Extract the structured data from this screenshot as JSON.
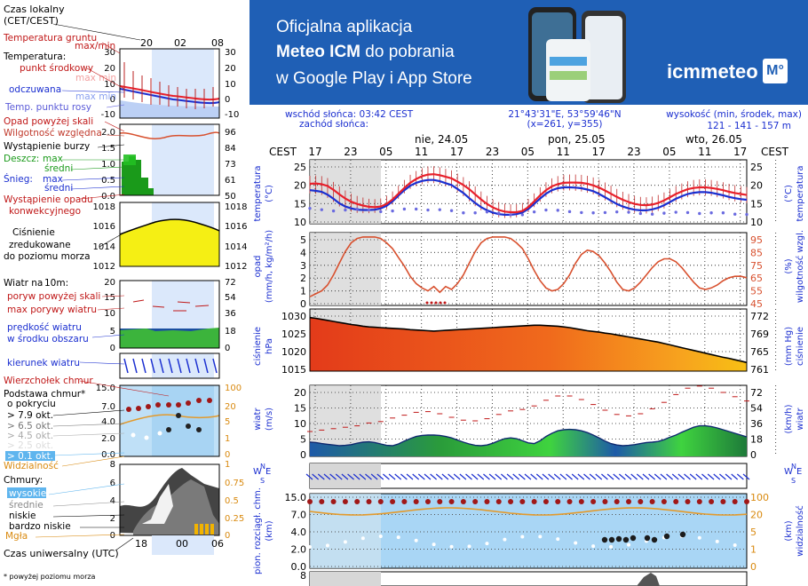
{
  "banner": {
    "line1": "Oficjalna aplikacja",
    "line2_bold": "Meteo ICM",
    "line2_rest": " do pobrania",
    "line3": "w Google Play i App Store",
    "logo_text": "icmmeteo",
    "logo_badge": "M°"
  },
  "info": {
    "sunrise": "wschód słońca: 03:42 CEST",
    "sunset": "zachód słońca:",
    "coords": "21°43'31\"E, 53°59'46\"N",
    "grid": "(x=261,  y=355)",
    "elev_label": "wysokość (min, środek, max)",
    "elev_value": "121 - 141 - 157 m"
  },
  "time_axis": {
    "zone": "CEST",
    "days": [
      "nie, 24.05",
      "pon, 25.05",
      "wto, 26.05"
    ],
    "hours": [
      "17",
      "23",
      "05",
      "11",
      "17",
      "23",
      "05",
      "11",
      "17",
      "23",
      "05",
      "11",
      "17"
    ]
  },
  "legend": {
    "czas_lokalny": "Czas lokalny",
    "cet": "(CET/CEST)",
    "top_hours": [
      "20",
      "02",
      "08"
    ],
    "temp_gruntu": "Temperatura gruntu",
    "maxmin": "max/min",
    "temperatura": "Temperatura:",
    "punkt_srodkowy": "punkt środkowy",
    "max_min": "max min",
    "odczuwana": "odczuwana",
    "max_min2": "max min",
    "temp_punktu_rosy": "Temp. punktu rosy",
    "opad_powyzej": "Opad powyżej skali",
    "wilgotnosc": "Wilgotność względna",
    "burza": "Wystąpienie burzy",
    "deszcz": "Deszcz:",
    "max": "max",
    "sredni": "średni",
    "snieg": "Śnieg:",
    "wyst_opadu": "Wystąpienie opadu",
    "konwekcyjnego": "konwekcyjnego",
    "cisnienie": "Ciśnienie",
    "zredukowane": "zredukowane",
    "do_poziomu": "do poziomu morza",
    "wiatr": "Wiatr na",
    "wiatr_h": "10m:",
    "poryw_powyzej": "poryw powyżej skali",
    "max_porywy": "max porywy wiatru",
    "predkosc": "prędkość wiatru",
    "w_srodku": "w środku obszaru",
    "kierunek": "kierunek wiatru",
    "wierzcholek": "Wierzchołek chmur",
    "podstawa": "Podstawa chmur*",
    "o_pokryciu": "o pokryciu",
    "okt": [
      "> 7.9 okt.",
      "> 6.5 okt.",
      "> 4.5 okt.",
      "> 2.5 okt.",
      "> 0.1 okt."
    ],
    "widzialnosc": "Widzialność",
    "chmury": "Chmury:",
    "wysokie": "wysokie",
    "srednie": "średnie",
    "niskie": "niskie",
    "bardzo_niskie": "bardzo niskie",
    "mgla": "Mgła",
    "czas_uniw": "Czas uniwersalny (UTC)",
    "bottom_hours": [
      "18",
      "00",
      "06"
    ],
    "footnote": "* powyżej poziomu morza",
    "temp_ticks_l": [
      "30",
      "20",
      "10",
      "0",
      "-10"
    ],
    "temp_ticks_r": [
      "30",
      "20",
      "10",
      "0",
      "-10"
    ],
    "prec_ticks_l": [
      "2.0",
      "1.5",
      "1.0",
      "0.5",
      "0.0"
    ],
    "prec_ticks_r": [
      "96",
      "84",
      "73",
      "61",
      "50"
    ],
    "pres_ticks_l": [
      "1018",
      "1016",
      "1014",
      "1012"
    ],
    "pres_ticks_r": [
      "1018",
      "1016",
      "1014",
      "1012"
    ],
    "wind_ticks_l": [
      "20",
      "15",
      "10",
      "5",
      "0"
    ],
    "wind_ticks_r": [
      "72",
      "54",
      "36",
      "18",
      "0"
    ],
    "cb_ticks_l": [
      "15.0",
      "7.0",
      "4.0",
      "2.0",
      "0.0"
    ],
    "cb_ticks_r": [
      "100",
      "20",
      "5",
      "1",
      "0"
    ],
    "cl_ticks_l": [
      "8",
      "6",
      "4",
      "2",
      "0"
    ],
    "cl_ticks_r": [
      "1",
      "0.75",
      "0.5",
      "0.25",
      "0"
    ]
  },
  "panels": {
    "temperatura": {
      "label_l": "temperatura",
      "unit_l": "(°C)",
      "label_r": "temperatura",
      "unit_r": "(°C)"
    },
    "opad": {
      "label_l": "opad",
      "unit_l": "(mm/h, kg/m²/h)",
      "label_r": "wilgotność wzgl.",
      "unit_r": "(%)"
    },
    "cisnienie": {
      "label_l": "ciśnienie",
      "unit_l": "hPa",
      "label_r": "ciśnienie",
      "unit_r": "(mm Hg)"
    },
    "wiatr": {
      "label_l": "wiatr",
      "unit_l": "(m/s)",
      "label_r": "wiatr",
      "unit_r": "(km/h)"
    },
    "podstawa": {
      "label_l": "pion. rozciągł. chm.",
      "unit_l": "(km)",
      "label_r": "widzialność",
      "unit_r": "(km)"
    },
    "compass": [
      "W",
      "N",
      "E",
      "S"
    ]
  },
  "chart_data": [
    {
      "type": "line",
      "title": "temperatura",
      "x": [
        "17",
        "18",
        "19",
        "20",
        "21",
        "22",
        "23",
        "00",
        "01",
        "02",
        "03",
        "04",
        "05",
        "06",
        "07",
        "08",
        "09",
        "10",
        "11",
        "12",
        "13",
        "14",
        "15",
        "16",
        "17",
        "18",
        "19",
        "20",
        "21",
        "22",
        "23",
        "00",
        "01",
        "02",
        "03",
        "04",
        "05",
        "06",
        "07",
        "08",
        "09",
        "10",
        "11",
        "12",
        "13",
        "14",
        "15",
        "16",
        "17",
        "18",
        "19",
        "20",
        "21",
        "22",
        "23",
        "00",
        "01",
        "02",
        "03",
        "04",
        "05",
        "06",
        "07",
        "08",
        "09",
        "10",
        "11",
        "12",
        "13",
        "14",
        "15",
        "16",
        "17",
        "18",
        "19"
      ],
      "ylim": [
        7,
        27
      ],
      "yticks_l": [
        "25",
        "20",
        "15",
        "10"
      ],
      "yticks_r": [
        "25",
        "20",
        "15",
        "10"
      ],
      "series": [
        {
          "values": [
            19.5,
            19.6,
            19.4,
            18.8,
            17.6,
            16.2,
            14.9,
            13.9,
            13.2,
            12.7,
            12.3,
            12.2,
            12.4,
            13.2,
            14.6,
            16.4,
            18.2,
            19.8,
            21.0,
            21.9,
            22.4,
            22.5,
            22.2,
            21.7,
            21.2,
            20.2,
            19.1,
            17.8,
            16.2,
            14.6,
            13.2,
            12.1,
            11.3,
            10.8,
            10.6,
            10.6,
            11.0,
            12.2,
            14.0,
            15.9,
            17.5,
            18.7,
            19.4,
            19.8,
            19.9,
            19.9,
            19.8,
            19.5,
            19.0,
            18.3,
            17.4,
            16.4,
            15.4,
            14.5,
            13.8,
            13.2,
            12.9,
            12.8,
            13.0,
            13.5,
            14.3,
            15.3,
            16.3,
            17.1,
            17.8,
            18.2,
            18.4,
            18.4,
            18.2,
            17.9,
            17.5,
            17.0,
            16.6,
            16.3,
            16.0
          ]
        },
        {
          "values": [
            17.5,
            17.3,
            17.0,
            16.1,
            14.8,
            13.4,
            12.4,
            11.8,
            11.4,
            11.3,
            11.3,
            11.4,
            11.8,
            12.6,
            14.0,
            15.8,
            17.5,
            18.9,
            19.8,
            20.4,
            20.7,
            20.7,
            20.3,
            19.7,
            19.1,
            17.9,
            16.6,
            15.0,
            13.5,
            12.2,
            11.2,
            10.5,
            10.0,
            9.8,
            9.8,
            10.0,
            10.5,
            11.6,
            13.2,
            14.9,
            16.4,
            17.5,
            18.1,
            18.4,
            18.4,
            18.3,
            18.1,
            17.7,
            17.2,
            16.3,
            15.3,
            14.2,
            13.2,
            12.4,
            11.8,
            11.4,
            11.2,
            11.2,
            11.5,
            12.0,
            12.8,
            13.8,
            14.8,
            15.6,
            16.3,
            16.7,
            16.9,
            16.9,
            16.7,
            16.3,
            15.9,
            15.4,
            15.0,
            14.7,
            14.5
          ]
        },
        {
          "values": [
            11.8,
            11.6,
            11.4,
            11.2,
            11.0,
            11.1,
            11.3,
            11.5,
            11.6,
            11.5,
            11.3,
            11.0,
            10.8,
            10.8,
            11.0,
            11.3,
            11.6,
            11.7,
            11.6,
            11.4,
            11.3,
            11.3,
            11.4,
            11.3,
            11.1,
            10.7,
            10.4,
            10.3,
            10.4,
            10.6,
            10.7,
            10.6,
            10.3,
            10.0,
            9.8,
            9.7,
            9.8,
            10.2,
            10.7,
            11.1,
            11.3,
            11.3,
            11.2,
            11.0,
            10.8,
            10.6,
            10.5,
            10.4,
            10.4,
            10.4,
            10.5,
            10.6,
            10.7,
            10.7,
            10.6,
            10.4,
            10.2,
            10.0,
            10.0,
            10.1,
            10.3,
            10.5,
            10.6,
            10.6,
            10.5,
            10.3,
            10.2,
            10.3,
            10.4,
            10.5,
            10.4,
            10.2,
            10.0,
            9.9,
            9.9
          ]
        }
      ]
    },
    {
      "type": "line",
      "title": "opad",
      "ylim": [
        0,
        5
      ],
      "yticks_l": [
        "5",
        "4",
        "3",
        "2",
        "1",
        "0"
      ],
      "yticks_r": [
        "95",
        "85",
        "75",
        "65",
        "55",
        "45"
      ],
      "series": [
        {
          "values": [
            51,
            53,
            55,
            59,
            66,
            74,
            82,
            88,
            91,
            92,
            92,
            92,
            91,
            88,
            84,
            78,
            72,
            65,
            60,
            57,
            55,
            58,
            54,
            58,
            56,
            60,
            66,
            74,
            82,
            88,
            91,
            92,
            92,
            92,
            91,
            88,
            84,
            77,
            69,
            62,
            57,
            55,
            56,
            60,
            66,
            74,
            80,
            83,
            82,
            79,
            74,
            68,
            61,
            56,
            55,
            57,
            61,
            66,
            71,
            75,
            77,
            77,
            75,
            71,
            66,
            61,
            57,
            56,
            57,
            59,
            62,
            64,
            65,
            65,
            64
          ]
        }
      ]
    },
    {
      "type": "area",
      "title": "ciśnienie",
      "ylim": [
        1012,
        1030
      ],
      "yticks_l": [
        "1030",
        "1025",
        "1020",
        "1015"
      ],
      "yticks_r": [
        "772",
        "769",
        "765",
        "761"
      ],
      "series": [
        {
          "values": [
            1027.5,
            1027.3,
            1027.0,
            1026.7,
            1026.4,
            1026.1,
            1025.8,
            1025.5,
            1025.3,
            1025.0,
            1024.8,
            1024.7,
            1024.6,
            1024.5,
            1024.4,
            1024.3,
            1024.2,
            1024.0,
            1023.9,
            1023.8,
            1023.7,
            1023.6,
            1023.7,
            1023.8,
            1023.9,
            1024.0,
            1024.1,
            1024.2,
            1024.3,
            1024.4,
            1024.5,
            1024.6,
            1024.7,
            1024.8,
            1024.9,
            1025.0,
            1025.1,
            1025.2,
            1025.3,
            1025.3,
            1025.2,
            1025.1,
            1025.0,
            1024.8,
            1024.6,
            1024.3,
            1024.0,
            1023.7,
            1023.5,
            1023.3,
            1023.0,
            1022.8,
            1022.5,
            1022.2,
            1021.9,
            1021.6,
            1021.3,
            1021.0,
            1020.7,
            1020.4,
            1020.0,
            1019.6,
            1019.2,
            1018.8,
            1018.4,
            1018.0,
            1017.6,
            1017.2,
            1016.8,
            1016.4,
            1016.0,
            1015.7,
            1015.3,
            1014.9,
            1014.5
          ]
        }
      ]
    },
    {
      "type": "line",
      "title": "wiatr",
      "ylim": [
        0,
        20
      ],
      "yticks_l": [
        "20",
        "15",
        "10",
        "5",
        "0"
      ],
      "yticks_r": [
        "72",
        "54",
        "36",
        "18",
        "0"
      ],
      "series": [
        {
          "values": [
            4.0,
            3.9,
            3.6,
            3.4,
            3.2,
            3.0,
            3.1,
            3.3,
            3.7,
            4.0,
            4.1,
            3.9,
            3.5,
            3.1,
            3.0,
            3.5,
            4.3,
            5.0,
            5.6,
            5.9,
            6.0,
            6.0,
            5.9,
            5.6,
            5.2,
            4.6,
            4.0,
            3.5,
            3.1,
            3.0,
            3.2,
            3.7,
            4.4,
            5.0,
            5.2,
            5.0,
            4.4,
            3.8,
            3.6,
            4.4,
            5.6,
            6.5,
            7.2,
            7.5,
            7.6,
            7.5,
            7.2,
            6.7,
            6.0,
            5.2,
            4.3,
            3.6,
            3.2,
            3.0,
            3.1,
            3.3,
            3.6,
            3.9,
            4.0,
            4.2,
            4.7,
            5.4,
            6.0,
            6.8,
            7.5,
            8.2,
            8.6,
            8.6,
            8.4,
            8.0,
            7.5,
            7.0,
            6.5,
            6.0,
            5.5
          ]
        },
        {
          "values": [
            7.0,
            7.2,
            7.4,
            7.6,
            7.8,
            8.0,
            8.2,
            8.4,
            8.6,
            9.0,
            9.4,
            9.6,
            9.8,
            10.2,
            10.8,
            11.2,
            11.6,
            12.0,
            12.4,
            12.6,
            12.6,
            12.4,
            12.0,
            11.5,
            11.0,
            10.6,
            10.2,
            10.0,
            10.0,
            10.2,
            10.6,
            11.2,
            11.8,
            12.4,
            12.8,
            13.0,
            13.2,
            13.6,
            14.2,
            15.0,
            15.8,
            16.5,
            17.0,
            17.2,
            17.0,
            16.6,
            16.0,
            15.4,
            14.6,
            13.8,
            13.0,
            12.2,
            11.8,
            11.6,
            11.4,
            11.6,
            12.0,
            12.6,
            13.4,
            14.2,
            15.2,
            16.3,
            17.4,
            18.4,
            19.2,
            19.6,
            19.8,
            19.6,
            19.2,
            18.6,
            18.0,
            17.4,
            16.8,
            16.2,
            15.6
          ]
        }
      ]
    }
  ],
  "colors": {
    "banner_bg": "#1f5fb5",
    "shade_night": "#d7d7d7",
    "shade_day_legend": "#dbe8fb",
    "temp_red": "#e8202b",
    "temp_blue": "#1b2fd0",
    "dew_purple": "#6a6ae0",
    "humidity": "#d8512f",
    "pressure_line": "#000000",
    "wind_gust": "#c01818"
  }
}
